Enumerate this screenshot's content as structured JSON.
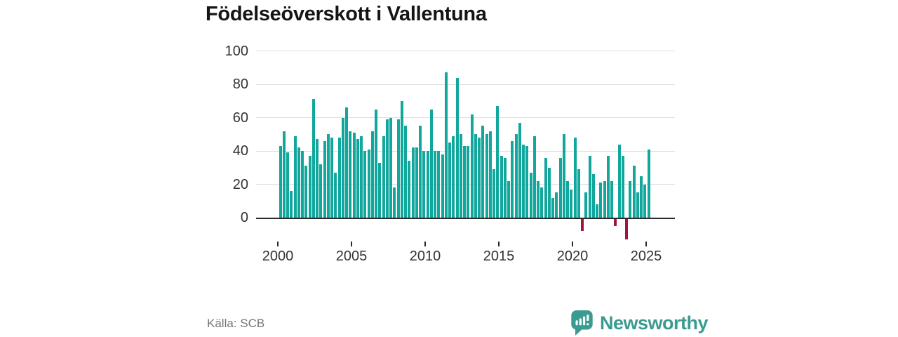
{
  "header": {
    "title": "Födelseöverskott i Vallentuna"
  },
  "footer": {
    "source": "Källa: SCB",
    "brand": "Newsworthy"
  },
  "colors": {
    "bar_positive": "#12a79d",
    "bar_negative": "#a11341",
    "axis": "#2b2b2b",
    "gridline": "#dedede",
    "tick_label": "#333333",
    "title": "#151515",
    "source_text": "#757575",
    "brand_teal": "#3b9b90",
    "background": "#ffffff"
  },
  "chart_data": {
    "type": "bar",
    "title": "Födelseöverskott i Vallentuna",
    "frequency": "quarterly",
    "start_period": "2000-Q1",
    "end_period": "2025-Q1",
    "values": [
      43,
      52,
      39,
      16,
      49,
      42,
      40,
      31,
      37,
      71,
      47,
      32,
      46,
      50,
      48,
      27,
      48,
      60,
      66,
      52,
      51,
      47,
      49,
      40,
      41,
      52,
      65,
      33,
      49,
      59,
      60,
      18,
      59,
      70,
      55,
      34,
      42,
      42,
      55,
      40,
      40,
      65,
      40,
      40,
      38,
      87,
      45,
      49,
      84,
      50,
      43,
      43,
      62,
      50,
      48,
      55,
      50,
      52,
      29,
      67,
      37,
      36,
      22,
      46,
      50,
      57,
      44,
      43,
      27,
      49,
      22,
      18,
      36,
      30,
      12,
      15,
      36,
      50,
      22,
      17,
      48,
      29,
      -7,
      15,
      37,
      26,
      8,
      21,
      22,
      37,
      22,
      -4,
      44,
      37,
      -12,
      22,
      31,
      15,
      25,
      20,
      41
    ],
    "xticklabels": [
      "2000",
      "2005",
      "2010",
      "2015",
      "2020",
      "2025"
    ],
    "yticks": [
      0,
      20,
      40,
      60,
      80,
      100
    ],
    "yticklabels": [
      "0",
      "20",
      "40",
      "60",
      "80",
      "100"
    ],
    "ylim": [
      -15,
      100
    ],
    "grid": "horizontal",
    "legend": "none",
    "bar_color": "#12a79d",
    "negative_bar_color": "#a11341"
  }
}
